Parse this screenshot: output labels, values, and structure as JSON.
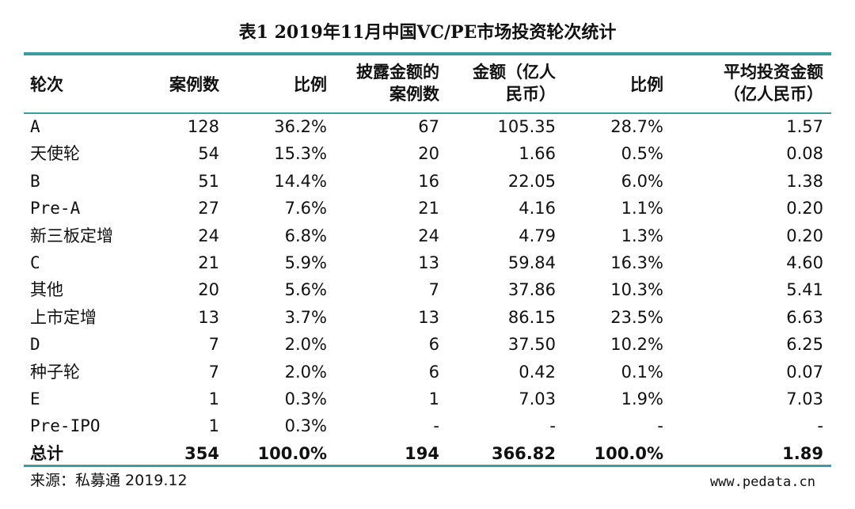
{
  "title": "表1 2019年11月中国VC/PE市场投资轮次统计",
  "table": {
    "header": [
      [
        "轮次"
      ],
      [
        "案例数"
      ],
      [
        "比例"
      ],
      [
        "披露金额的",
        "案例数"
      ],
      [
        "金额（亿人",
        "民币）"
      ],
      [
        "比例"
      ],
      [
        "平均投资金额",
        "（亿人民币）"
      ]
    ],
    "rows": [
      [
        "A",
        "128",
        "36.2%",
        "67",
        "105.35",
        "28.7%",
        "1.57"
      ],
      [
        "天使轮",
        "54",
        "15.3%",
        "20",
        "1.66",
        "0.5%",
        "0.08"
      ],
      [
        "B",
        "51",
        "14.4%",
        "16",
        "22.05",
        "6.0%",
        "1.38"
      ],
      [
        "Pre-A",
        "27",
        "7.6%",
        "21",
        "4.16",
        "1.1%",
        "0.20"
      ],
      [
        "新三板定增",
        "24",
        "6.8%",
        "24",
        "4.79",
        "1.3%",
        "0.20"
      ],
      [
        "C",
        "21",
        "5.9%",
        "13",
        "59.84",
        "16.3%",
        "4.60"
      ],
      [
        "其他",
        "20",
        "5.6%",
        "7",
        "37.86",
        "10.3%",
        "5.41"
      ],
      [
        "上市定增",
        "13",
        "3.7%",
        "13",
        "86.15",
        "23.5%",
        "6.63"
      ],
      [
        "D",
        "7",
        "2.0%",
        "6",
        "37.50",
        "10.2%",
        "6.25"
      ],
      [
        "种子轮",
        "7",
        "2.0%",
        "6",
        "0.42",
        "0.1%",
        "0.07"
      ],
      [
        "E",
        "1",
        "0.3%",
        "1",
        "7.03",
        "1.9%",
        "7.03"
      ],
      [
        "Pre-IPO",
        "1",
        "0.3%",
        "-",
        "-",
        "-",
        "-"
      ]
    ],
    "total": [
      "总计",
      "354",
      "100.0%",
      "194",
      "366.82",
      "100.0%",
      "1.89"
    ]
  },
  "source": "来源：私募通 2019.12",
  "website": "www.pedata.cn"
}
